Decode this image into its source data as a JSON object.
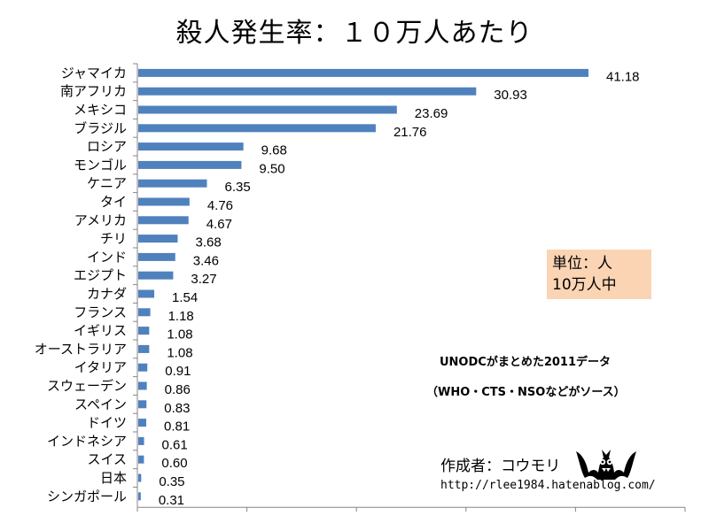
{
  "chart_data": {
    "type": "bar",
    "orientation": "horizontal",
    "title": "殺人発生率：１０万人あたり",
    "categories": [
      "ジャマイカ",
      "南アフリカ",
      "メキシコ",
      "ブラジル",
      "ロシア",
      "モンゴル",
      "ケニア",
      "タイ",
      "アメリカ",
      "チリ",
      "インド",
      "エジプト",
      "カナダ",
      "フランス",
      "イギリス",
      "オーストラリア",
      "イタリア",
      "スウェーデン",
      "スペイン",
      "ドイツ",
      "インドネシア",
      "スイス",
      "日本",
      "シンガポール"
    ],
    "values": [
      41.18,
      30.93,
      23.69,
      21.76,
      9.68,
      9.5,
      6.35,
      4.76,
      4.67,
      3.68,
      3.46,
      3.27,
      1.54,
      1.18,
      1.08,
      1.08,
      0.91,
      0.86,
      0.83,
      0.81,
      0.61,
      0.6,
      0.35,
      0.31
    ],
    "value_labels": [
      "41.18",
      "30.93",
      "23.69",
      "21.76",
      "9.68",
      "9.50",
      "6.35",
      "4.76",
      "4.67",
      "3.68",
      "3.46",
      "3.27",
      "1.54",
      "1.18",
      "1.08",
      "1.08",
      "0.91",
      "0.86",
      "0.83",
      "0.81",
      "0.61",
      "0.60",
      "0.35",
      "0.31"
    ],
    "xlim": [
      0,
      50
    ],
    "xlabel": "",
    "ylabel": "",
    "series_color": "#4f81bd",
    "grid": false
  },
  "unit_box": {
    "line1": "単位：人",
    "line2": "10万人中",
    "color": "#fbd4b4"
  },
  "notes": {
    "source": "UNODCがまとめた2011データ",
    "sub": "（WHO・CTS・NSOなどがソース）"
  },
  "author": "作成者：コウモリ",
  "blog_url": "http://rlee1984.hatenablog.com/",
  "icons": {
    "mascot": "bat-icon"
  }
}
